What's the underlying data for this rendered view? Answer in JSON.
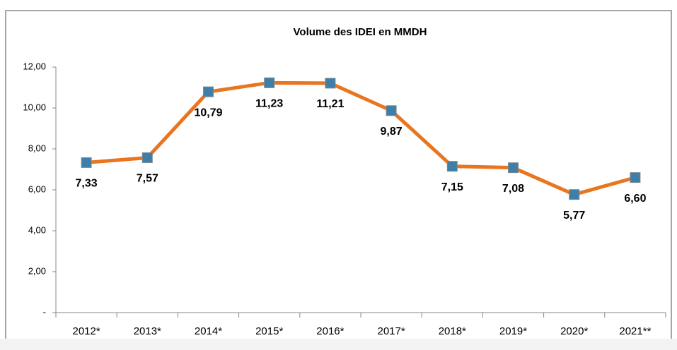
{
  "chart_data": {
    "type": "line",
    "title": "Volume des IDEI en MMDH",
    "categories": [
      "2012*",
      "2013*",
      "2014*",
      "2015*",
      "2016*",
      "2017*",
      "2018*",
      "2019*",
      "2020*",
      "2021**"
    ],
    "series": [
      {
        "name": "Volume des IDEI",
        "color": "#e9751f",
        "marker_color": "#3f7ea6",
        "values": [
          7.33,
          7.57,
          10.79,
          11.23,
          11.21,
          9.87,
          7.15,
          7.08,
          5.77,
          6.6
        ],
        "value_labels": [
          "7,33",
          "7,57",
          "10,79",
          "11,23",
          "11,21",
          "9,87",
          "7,15",
          "7,08",
          "5,77",
          "6,60"
        ]
      }
    ],
    "ylim": [
      0,
      12
    ],
    "yticks": [
      {
        "value": 0,
        "label": "-"
      },
      {
        "value": 2,
        "label": "2,00"
      },
      {
        "value": 4,
        "label": "4,00"
      },
      {
        "value": 6,
        "label": "6,00"
      },
      {
        "value": 8,
        "label": "8,00"
      },
      {
        "value": 10,
        "label": "10,00"
      },
      {
        "value": 12,
        "label": "12,00"
      }
    ],
    "grid": false
  }
}
